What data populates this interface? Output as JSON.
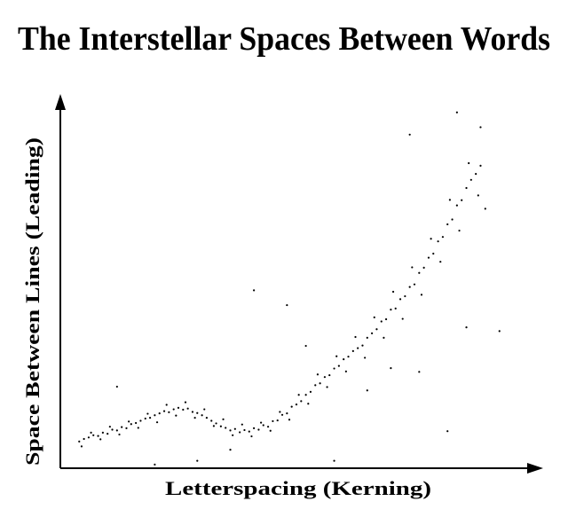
{
  "chart_data": {
    "type": "scatter",
    "title": "The Interstellar Spaces Between Words",
    "x_label": "Letterspacing (Kerning)",
    "y_label": "Space Between Lines (Leading)",
    "color": "#000000",
    "xlim": [
      0,
      100
    ],
    "ylim": [
      0,
      100
    ],
    "grid": false,
    "x": [
      4,
      5,
      6,
      7,
      8,
      9,
      10,
      11,
      12,
      13,
      14,
      15,
      16,
      17,
      18,
      19,
      20,
      21,
      22,
      23,
      24,
      25,
      26,
      27,
      28,
      29,
      30,
      31,
      32,
      33,
      34,
      35,
      36,
      37,
      38,
      39,
      40,
      41,
      42,
      43,
      44,
      45,
      46,
      47,
      48,
      49,
      50,
      51,
      52,
      53,
      54,
      55,
      56,
      57,
      58,
      59,
      60,
      61,
      62,
      63,
      64,
      65,
      66,
      67,
      68,
      69,
      70,
      71,
      72,
      73,
      74,
      75,
      76,
      77,
      78,
      79,
      80,
      81,
      82,
      83,
      84,
      85,
      86,
      87,
      88,
      89,
      4.5,
      6.5,
      8.5,
      10.5,
      12.5,
      14.5,
      16.5,
      18.5,
      20.5,
      22.5,
      24.5,
      26.5,
      28.5,
      30.5,
      32.5,
      34.5,
      36.5,
      38.5,
      40.5,
      42.5,
      44.5,
      46.5,
      48.5,
      50.5,
      52.5,
      54.5,
      56.5,
      58.5,
      60.5,
      62.5,
      64.5,
      66.5,
      68.5,
      70.5,
      72.5,
      74.5,
      76.5,
      78.5,
      80.5,
      82.5,
      84.5,
      86.5,
      88.5,
      12,
      20,
      29,
      41,
      48,
      52,
      58,
      65,
      76,
      86,
      93,
      74,
      84,
      89,
      90,
      70,
      36,
      82
    ],
    "values": [
      7.2,
      7.9,
      8.3,
      8.9,
      8.7,
      9.6,
      9.3,
      10.4,
      10.2,
      11.1,
      10.8,
      11.9,
      12.2,
      12.8,
      13.4,
      13.6,
      14.3,
      14.8,
      15.4,
      15.1,
      15.9,
      16.3,
      15.8,
      16.1,
      15.2,
      14.9,
      14.3,
      13.6,
      12.8,
      12.1,
      11.3,
      10.9,
      10.2,
      10.6,
      9.7,
      10.3,
      9.9,
      10.8,
      10.4,
      11.6,
      11.2,
      12.7,
      12.9,
      14.4,
      14.8,
      16.6,
      17.2,
      18.1,
      19.8,
      20.6,
      22.4,
      22.9,
      24.6,
      25.1,
      26.9,
      27.6,
      29.4,
      30.1,
      31.6,
      32.4,
      33.1,
      35.2,
      36.4,
      37.5,
      39.6,
      40.2,
      42.8,
      43.1,
      45.6,
      46.4,
      48.9,
      49.6,
      52.7,
      54.1,
      56.8,
      57.9,
      61.2,
      62.4,
      65.8,
      67.1,
      70.9,
      72.3,
      75.6,
      77.8,
      79.4,
      81.6,
      5.9,
      9.6,
      7.8,
      11.2,
      9.1,
      12.6,
      10.9,
      14.7,
      12.4,
      17.1,
      14.2,
      17.8,
      13.6,
      15.9,
      11.4,
      13.2,
      8.9,
      11.8,
      8.6,
      12.3,
      10.1,
      15.2,
      13.1,
      19.8,
      17.4,
      25.3,
      21.9,
      30.2,
      26.1,
      35.4,
      29.8,
      40.7,
      35.2,
      47.6,
      40.3,
      54.2,
      46.8,
      61.9,
      55.7,
      72.4,
      64.1,
      82.3,
      73.6,
      22,
      1,
      2,
      48,
      44,
      33,
      2,
      21,
      26,
      38,
      37,
      90,
      96,
      92,
      70,
      27,
      5,
      10
    ]
  }
}
